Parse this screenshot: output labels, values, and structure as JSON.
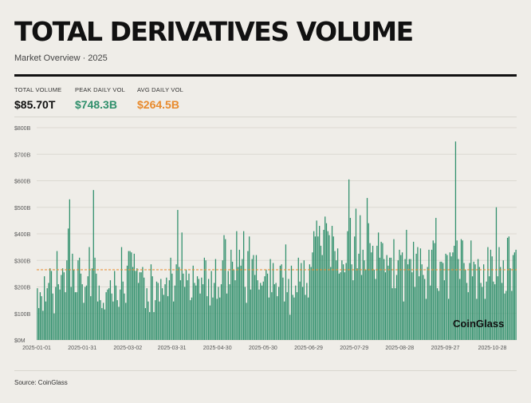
{
  "header": {
    "title": "TOTAL DERIVATIVES VOLUME",
    "subtitle": "Market Overview · 2025"
  },
  "stats": [
    {
      "label": "TOTAL VOLUME",
      "value": "$85.70T",
      "color": "#111111"
    },
    {
      "label": "PEAK DAILY VOL",
      "value": "$748.3B",
      "color": "#2f8f6b"
    },
    {
      "label": "AVG DAILY VOL",
      "value": "$264.5B",
      "color": "#e88a2c"
    }
  ],
  "footer": {
    "source": "Source: CoinGlass"
  },
  "watermark": "CoinGlass",
  "chart_data": {
    "type": "bar",
    "unit": "USD billions",
    "x_start": "2025-01-01",
    "x_end": "2025-11-13",
    "y_ticks": [
      "$0M",
      "$100B",
      "$200B",
      "$300B",
      "$400B",
      "$500B",
      "$600B",
      "$700B",
      "$800B"
    ],
    "ylim": [
      0,
      800
    ],
    "x_ticks": [
      "2025-01-01",
      "2025-01-31",
      "2025-03-02",
      "2025-03-31",
      "2025-04-30",
      "2025-05-30",
      "2025-06-29",
      "2025-07-29",
      "2025-08-28",
      "2025-09-27",
      "2025-10-28"
    ],
    "average_line": 264.5,
    "peak_value": 748.3,
    "peak_date": "2025-10-10",
    "grid": true,
    "bar_color": "#2f8f6b",
    "average_color": "#e88a2c",
    "values": [
      195,
      120,
      180,
      165,
      110,
      240,
      145,
      195,
      215,
      270,
      260,
      175,
      100,
      200,
      335,
      210,
      190,
      245,
      270,
      255,
      180,
      300,
      420,
      530,
      200,
      325,
      265,
      180,
      180,
      300,
      310,
      250,
      210,
      140,
      200,
      205,
      240,
      350,
      165,
      270,
      565,
      310,
      250,
      145,
      205,
      150,
      120,
      140,
      115,
      180,
      190,
      195,
      225,
      175,
      145,
      260,
      205,
      150,
      125,
      190,
      350,
      220,
      175,
      140,
      280,
      335,
      335,
      330,
      275,
      325,
      260,
      270,
      215,
      255,
      255,
      275,
      235,
      120,
      195,
      145,
      105,
      285,
      240,
      105,
      150,
      220,
      215,
      145,
      230,
      195,
      170,
      210,
      235,
      165,
      225,
      310,
      250,
      145,
      205,
      285,
      490,
      275,
      225,
      405,
      250,
      200,
      265,
      225,
      250,
      150,
      160,
      280,
      215,
      205,
      240,
      230,
      175,
      235,
      210,
      310,
      300,
      165,
      230,
      130,
      260,
      160,
      215,
      305,
      155,
      200,
      160,
      210,
      300,
      395,
      380,
      175,
      260,
      210,
      340,
      295,
      265,
      225,
      410,
      275,
      340,
      280,
      305,
      410,
      200,
      140,
      335,
      390,
      190,
      305,
      320,
      245,
      320,
      225,
      190,
      215,
      205,
      220,
      240,
      265,
      250,
      160,
      305,
      180,
      290,
      210,
      215,
      165,
      200,
      280,
      285,
      235,
      145,
      360,
      180,
      230,
      95,
      280,
      170,
      160,
      205,
      180,
      310,
      220,
      290,
      200,
      300,
      170,
      215,
      160,
      285,
      275,
      330,
      410,
      390,
      450,
      390,
      430,
      355,
      320,
      415,
      465,
      440,
      410,
      395,
      275,
      430,
      390,
      335,
      300,
      345,
      250,
      255,
      300,
      285,
      255,
      290,
      410,
      605,
      460,
      285,
      225,
      390,
      495,
      270,
      325,
      470,
      245,
      340,
      300,
      265,
      535,
      440,
      365,
      330,
      355,
      265,
      230,
      355,
      405,
      310,
      370,
      365,
      305,
      255,
      320,
      280,
      310,
      310,
      195,
      380,
      195,
      245,
      300,
      340,
      320,
      330,
      145,
      305,
      415,
      285,
      305,
      305,
      255,
      370,
      200,
      325,
      350,
      240,
      345,
      285,
      245,
      230,
      155,
      275,
      340,
      205,
      340,
      375,
      365,
      460,
      195,
      185,
      295,
      295,
      290,
      225,
      325,
      320,
      155,
      330,
      315,
      330,
      355,
      748,
      375,
      305,
      230,
      380,
      375,
      290,
      265,
      215,
      180,
      290,
      375,
      240,
      295,
      285,
      155,
      305,
      275,
      215,
      200,
      285,
      155,
      220,
      350,
      240,
      340,
      315,
      220,
      210,
      500,
      240,
      350,
      275,
      215,
      300,
      175,
      185,
      385,
      390,
      270,
      185,
      320,
      330,
      340
    ]
  }
}
